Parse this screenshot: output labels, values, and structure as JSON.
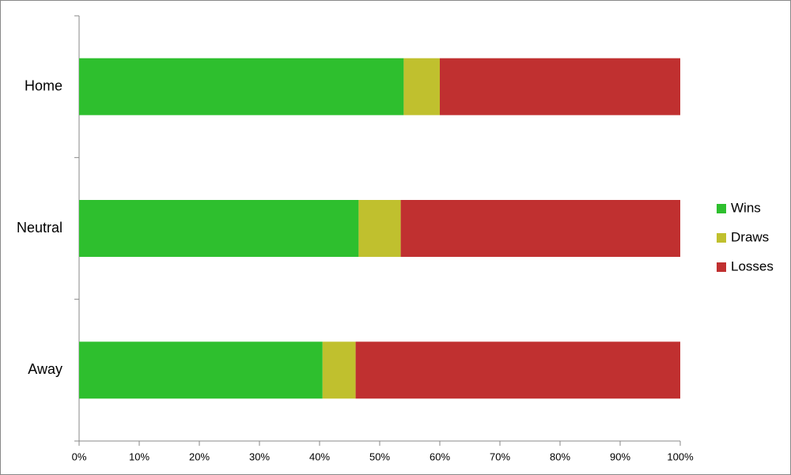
{
  "chart_data": {
    "type": "stacked-bar-horizontal",
    "categories": [
      "Home",
      "Neutral",
      "Away"
    ],
    "series": [
      {
        "name": "Wins",
        "color": "#2ebf2e",
        "values": [
          54,
          46.5,
          40.5
        ]
      },
      {
        "name": "Draws",
        "color": "#c0c02e",
        "values": [
          6,
          7,
          5.5
        ]
      },
      {
        "name": "Losses",
        "color": "#c03030",
        "values": [
          40,
          46.5,
          54
        ]
      }
    ],
    "xlim": [
      0,
      100
    ],
    "xticks": [
      {
        "value": 0,
        "label": "0%"
      },
      {
        "value": 10,
        "label": "10%"
      },
      {
        "value": 20,
        "label": "20%"
      },
      {
        "value": 30,
        "label": "30%"
      },
      {
        "value": 40,
        "label": "40%"
      },
      {
        "value": 50,
        "label": "50%"
      },
      {
        "value": 60,
        "label": "60%"
      },
      {
        "value": 70,
        "label": "70%"
      },
      {
        "value": 80,
        "label": "80%"
      },
      {
        "value": 90,
        "label": "90%"
      },
      {
        "value": 100,
        "label": "100%"
      }
    ],
    "legend": "right"
  }
}
